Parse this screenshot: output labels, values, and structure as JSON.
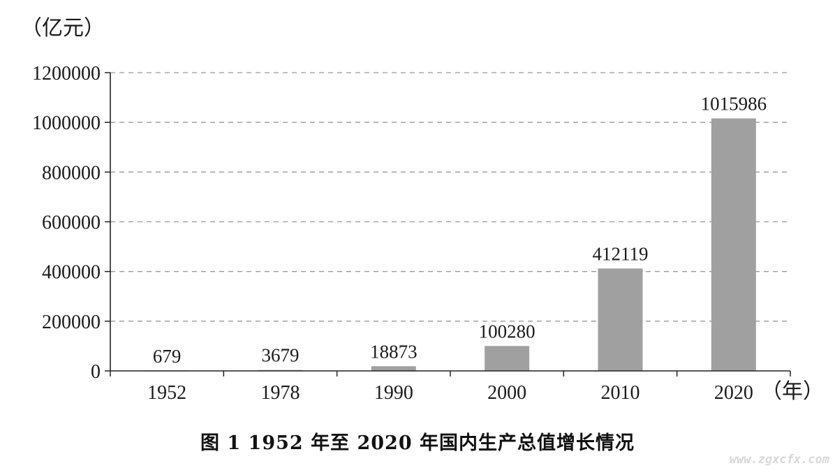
{
  "chart_data": {
    "type": "bar",
    "y_unit": "（亿元）",
    "x_unit": "（年）",
    "categories": [
      "1952",
      "1978",
      "1990",
      "2000",
      "2010",
      "2020"
    ],
    "values": [
      679,
      3679,
      18873,
      100280,
      412119,
      1015986
    ],
    "value_labels": [
      "679",
      "3679",
      "18873",
      "100280",
      "412119",
      "1015986"
    ],
    "y_ticks": [
      "0",
      "200000",
      "400000",
      "600000",
      "800000",
      "1000000",
      "1200000"
    ],
    "ylim": [
      0,
      1200000
    ],
    "grid": true,
    "bar_color": "#a0a0a0",
    "title": "图 1    1952 年至 2020 年国内生产总值增长情况"
  },
  "watermark": "www.zgxcfx.com"
}
